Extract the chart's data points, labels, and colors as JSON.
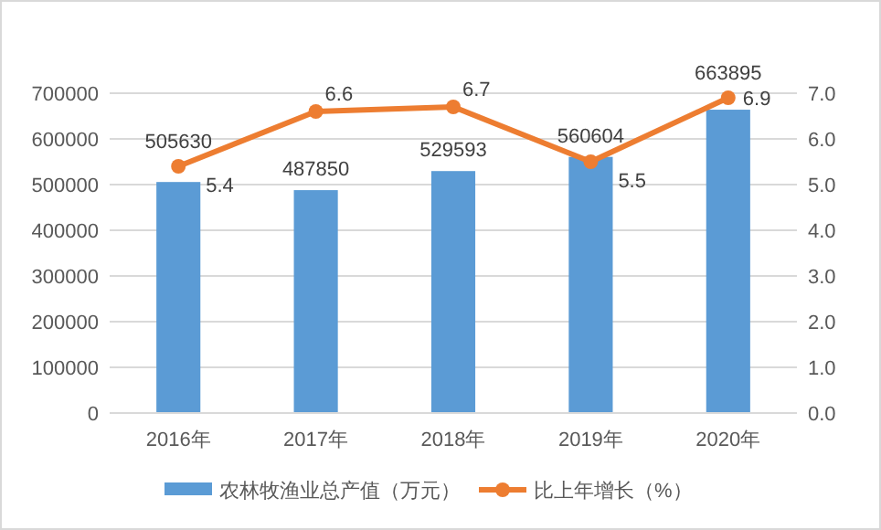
{
  "chart_data": {
    "type": "bar",
    "categories": [
      "2016年",
      "2017年",
      "2018年",
      "2019年",
      "2020年"
    ],
    "series": [
      {
        "name": "农林牧渔业总产值（万元）",
        "color": "#5b9bd5",
        "values": [
          505630,
          487850,
          529593,
          560604,
          663895
        ]
      },
      {
        "name": "比上年增长（%）",
        "type": "line",
        "axis": "y2",
        "color": "#ed7d31",
        "marker": "circle",
        "values": [
          5.4,
          6.6,
          6.7,
          5.5,
          6.9
        ]
      }
    ],
    "ylim": [
      0,
      700000
    ],
    "yticks": [
      0,
      100000,
      200000,
      300000,
      400000,
      500000,
      600000,
      700000
    ],
    "y2lim": [
      0,
      7
    ],
    "y2ticks": [
      {
        "value": 0,
        "label": "0.0"
      },
      {
        "value": 1,
        "label": "1.0"
      },
      {
        "value": 2,
        "label": "2.0"
      },
      {
        "value": 3,
        "label": "3.0"
      },
      {
        "value": 4,
        "label": "4.0"
      },
      {
        "value": 5,
        "label": "5.0"
      },
      {
        "value": 6,
        "label": "6.0"
      },
      {
        "value": 7,
        "label": "7.0"
      }
    ],
    "grid": "y",
    "legend": "bottom",
    "data_labels": true
  }
}
